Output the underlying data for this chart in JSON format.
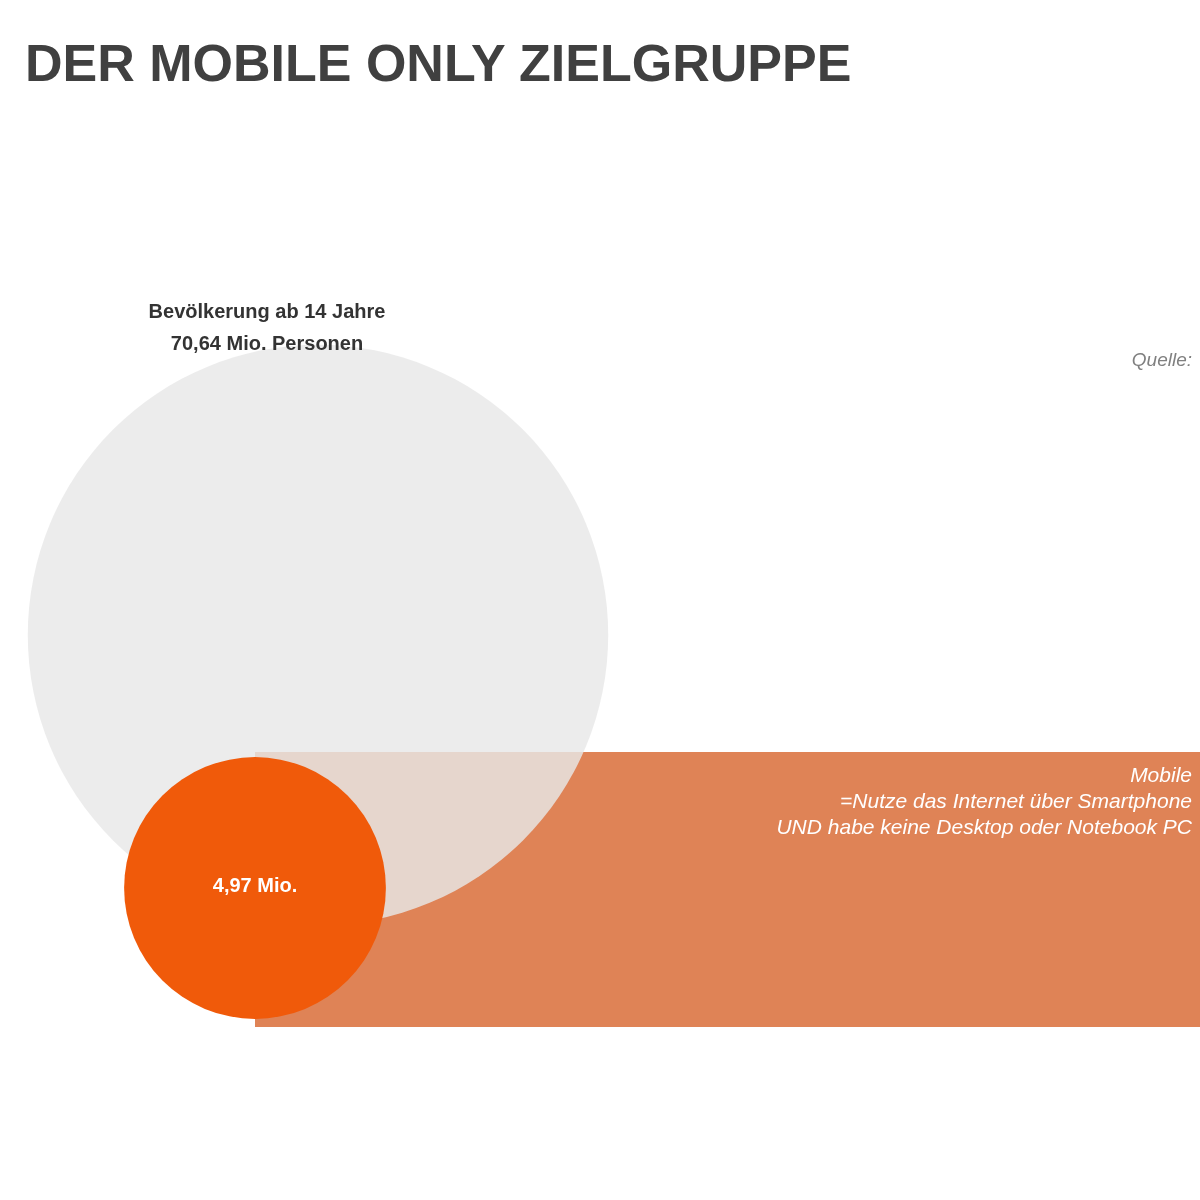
{
  "chart_data": {
    "type": "other",
    "title": "DER MOBILE ONLY ZIELGRUPPE",
    "categories": [
      "Bevölkerung ab 14 Jahre",
      null
    ],
    "values": [
      70.64,
      4.97
    ],
    "value_labels": [
      "70,64 Mio. Personen",
      "4,97 Mio."
    ],
    "colors": [
      "#e8e8e8",
      "#f05a0a"
    ],
    "annotations": [
      "Mobile",
      "=Nutze das Internet über Smartphone",
      "UND habe keine Desktop oder Notebook PC",
      "Quelle:"
    ]
  }
}
